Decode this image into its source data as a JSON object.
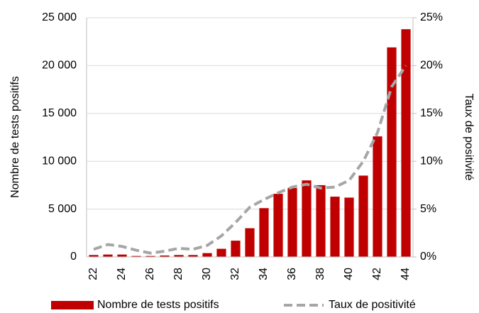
{
  "chart_data": {
    "type": "bar_line",
    "categories": [
      "22",
      null,
      "24",
      null,
      "26",
      null,
      "28",
      null,
      "30",
      null,
      "32",
      null,
      "34",
      null,
      "36",
      null,
      "38",
      null,
      "40",
      null,
      "42",
      null,
      "44"
    ],
    "series": [
      {
        "name": "Nombre de tests positifs",
        "type": "bar",
        "color": "#c00000",
        "values": [
          200,
          250,
          250,
          100,
          100,
          150,
          200,
          200,
          400,
          850,
          1700,
          3000,
          5100,
          6600,
          7200,
          8000,
          7500,
          6300,
          6200,
          8500,
          12600,
          21900,
          23800
        ]
      },
      {
        "name": "Taux de positivité",
        "type": "line",
        "axis": "y2",
        "color": "#a6a6a6",
        "values": [
          0.8,
          1.3,
          1.1,
          0.7,
          0.4,
          0.6,
          0.9,
          0.8,
          1.2,
          2.2,
          3.6,
          5.2,
          6.0,
          6.7,
          7.3,
          7.6,
          7.2,
          7.3,
          8.0,
          10.0,
          13.0,
          17.8,
          20.0
        ]
      }
    ],
    "y_label": "Nombre de tests positifs",
    "y2_label": "Taux de positivité",
    "ylim": [
      0,
      25000
    ],
    "yticks": [
      0,
      {
        "value": 5000,
        "label": "5 000"
      },
      {
        "value": 10000,
        "label": "10 000"
      },
      {
        "value": 15000,
        "label": "15 000"
      },
      {
        "value": 20000,
        "label": "20 000"
      },
      {
        "value": 25000,
        "label": "25 000"
      }
    ],
    "y2lim": [
      0,
      25
    ],
    "y2ticks": [
      {
        "value": 0,
        "label": "0%"
      },
      {
        "value": 5,
        "label": "5%"
      },
      {
        "value": 10,
        "label": "10%"
      },
      {
        "value": 15,
        "label": "15%"
      },
      {
        "value": 20,
        "label": "20%"
      },
      {
        "value": 25,
        "label": "25%"
      }
    ],
    "grid": true
  }
}
